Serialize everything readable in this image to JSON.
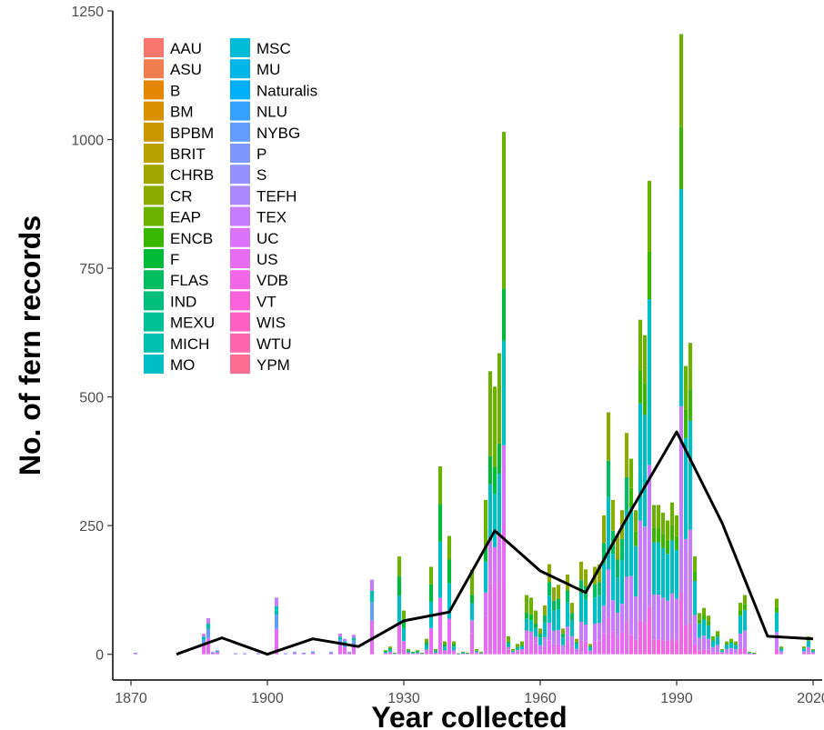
{
  "chart_data": {
    "type": "bar",
    "stacked": true,
    "xlabel": "Year collected",
    "ylabel": "No. of fern records",
    "xlim": [
      1866,
      2022
    ],
    "ylim": [
      -50,
      1250
    ],
    "xticks": [
      1870,
      1900,
      1930,
      1960,
      1990,
      2020
    ],
    "yticks": [
      0,
      250,
      500,
      750,
      1000,
      1250
    ],
    "grid": false,
    "legend_position": "top-left",
    "institutions": [
      {
        "name": "AAU",
        "color": "#F8766D"
      },
      {
        "name": "ASU",
        "color": "#F07E4E"
      },
      {
        "name": "B",
        "color": "#E58700"
      },
      {
        "name": "BM",
        "color": "#D89000"
      },
      {
        "name": "BPBM",
        "color": "#C99800"
      },
      {
        "name": "BRIT",
        "color": "#B8A000"
      },
      {
        "name": "CHRB",
        "color": "#A3A500"
      },
      {
        "name": "CR",
        "color": "#8CAB00"
      },
      {
        "name": "EAP",
        "color": "#6BB100"
      },
      {
        "name": "ENCB",
        "color": "#39B600"
      },
      {
        "name": "F",
        "color": "#00BA38"
      },
      {
        "name": "FLAS",
        "color": "#00BD5F"
      },
      {
        "name": "IND",
        "color": "#00BF7D"
      },
      {
        "name": "MEXU",
        "color": "#00C097"
      },
      {
        "name": "MICH",
        "color": "#00C0AF"
      },
      {
        "name": "MO",
        "color": "#00BFC4"
      },
      {
        "name": "MSC",
        "color": "#00BCD8"
      },
      {
        "name": "MU",
        "color": "#00B6EB"
      },
      {
        "name": "Naturalis",
        "color": "#00B0F6"
      },
      {
        "name": "NLU",
        "color": "#35A2FF"
      },
      {
        "name": "NYBG",
        "color": "#619CFF"
      },
      {
        "name": "P",
        "color": "#7F96FF"
      },
      {
        "name": "S",
        "color": "#9590FF"
      },
      {
        "name": "TEFH",
        "color": "#AC88FF"
      },
      {
        "name": "TEX",
        "color": "#C77CFF"
      },
      {
        "name": "UC",
        "color": "#DB72FB"
      },
      {
        "name": "US",
        "color": "#E76BF3"
      },
      {
        "name": "VDB",
        "color": "#F265E7"
      },
      {
        "name": "VT",
        "color": "#FA62DB"
      },
      {
        "name": "WIS",
        "color": "#FF61C3"
      },
      {
        "name": "WTU",
        "color": "#FF65AE"
      },
      {
        "name": "YPM",
        "color": "#FF6C91"
      }
    ],
    "bar_totals": [
      [
        1871,
        3
      ],
      [
        1886,
        40
      ],
      [
        1887,
        70
      ],
      [
        1888,
        5
      ],
      [
        1889,
        8
      ],
      [
        1893,
        2
      ],
      [
        1895,
        2
      ],
      [
        1898,
        2
      ],
      [
        1902,
        110
      ],
      [
        1904,
        2
      ],
      [
        1906,
        5
      ],
      [
        1908,
        3
      ],
      [
        1910,
        6
      ],
      [
        1914,
        5
      ],
      [
        1916,
        40
      ],
      [
        1917,
        30
      ],
      [
        1918,
        5
      ],
      [
        1919,
        38
      ],
      [
        1923,
        145
      ],
      [
        1926,
        8
      ],
      [
        1927,
        15
      ],
      [
        1928,
        3
      ],
      [
        1929,
        190
      ],
      [
        1930,
        85
      ],
      [
        1931,
        10
      ],
      [
        1932,
        5
      ],
      [
        1933,
        8
      ],
      [
        1934,
        3
      ],
      [
        1935,
        30
      ],
      [
        1936,
        170
      ],
      [
        1937,
        10
      ],
      [
        1938,
        365
      ],
      [
        1939,
        25
      ],
      [
        1940,
        230
      ],
      [
        1941,
        25
      ],
      [
        1942,
        2
      ],
      [
        1943,
        5
      ],
      [
        1944,
        3
      ],
      [
        1945,
        165
      ],
      [
        1946,
        10
      ],
      [
        1947,
        5
      ],
      [
        1948,
        300
      ],
      [
        1949,
        550
      ],
      [
        1950,
        520
      ],
      [
        1951,
        585
      ],
      [
        1952,
        1015
      ],
      [
        1953,
        35
      ],
      [
        1954,
        10
      ],
      [
        1955,
        20
      ],
      [
        1956,
        25
      ],
      [
        1957,
        115
      ],
      [
        1958,
        110
      ],
      [
        1959,
        85
      ],
      [
        1960,
        50
      ],
      [
        1961,
        95
      ],
      [
        1962,
        175
      ],
      [
        1963,
        130
      ],
      [
        1964,
        135
      ],
      [
        1965,
        50
      ],
      [
        1966,
        155
      ],
      [
        1967,
        100
      ],
      [
        1968,
        30
      ],
      [
        1969,
        180
      ],
      [
        1970,
        165
      ],
      [
        1971,
        20
      ],
      [
        1972,
        170
      ],
      [
        1973,
        175
      ],
      [
        1974,
        270
      ],
      [
        1975,
        470
      ],
      [
        1976,
        300
      ],
      [
        1977,
        230
      ],
      [
        1978,
        280
      ],
      [
        1979,
        430
      ],
      [
        1980,
        380
      ],
      [
        1981,
        280
      ],
      [
        1982,
        650
      ],
      [
        1983,
        620
      ],
      [
        1984,
        920
      ],
      [
        1985,
        290
      ],
      [
        1986,
        290
      ],
      [
        1987,
        275
      ],
      [
        1988,
        260
      ],
      [
        1989,
        295
      ],
      [
        1990,
        270
      ],
      [
        1991,
        1205
      ],
      [
        1992,
        560
      ],
      [
        1993,
        605
      ],
      [
        1994,
        190
      ],
      [
        1995,
        80
      ],
      [
        1996,
        90
      ],
      [
        1997,
        75
      ],
      [
        1998,
        35
      ],
      [
        1999,
        45
      ],
      [
        2000,
        10
      ],
      [
        2001,
        25
      ],
      [
        2002,
        30
      ],
      [
        2003,
        25
      ],
      [
        2004,
        100
      ],
      [
        2005,
        115
      ],
      [
        2006,
        5
      ],
      [
        2007,
        3
      ],
      [
        2012,
        108
      ],
      [
        2013,
        15
      ],
      [
        2018,
        15
      ],
      [
        2019,
        35
      ],
      [
        2020,
        10
      ]
    ],
    "decade_line": {
      "name": "",
      "x": [
        1880,
        1890,
        1900,
        1910,
        1920,
        1930,
        1940,
        1950,
        1960,
        1970,
        1980,
        1990,
        2000,
        2010,
        2020
      ],
      "y": [
        0,
        32,
        0,
        30,
        15,
        65,
        82,
        240,
        162,
        120,
        280,
        432,
        255,
        35,
        30
      ]
    }
  }
}
